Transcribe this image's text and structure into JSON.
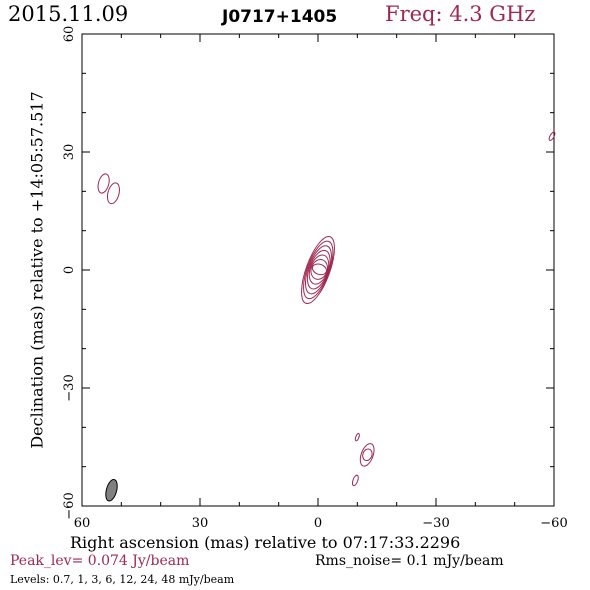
{
  "header": {
    "date": "2015.11.09",
    "source": "J0717+1405",
    "frequency": "Freq: 4.3 GHz"
  },
  "chart_data": {
    "type": "contour",
    "xlabel": "Right ascension (mas) relative to 07:17:33.2296",
    "ylabel": "Declination (mas) relative to +14:05:57.517",
    "xlim": [
      60,
      -60
    ],
    "ylim": [
      -60,
      60
    ],
    "xticks": [
      "60",
      "30",
      "0",
      "−30",
      "−60"
    ],
    "yticks": [
      "60",
      "30",
      "0",
      "−30",
      "−60"
    ],
    "peak_level": "Peak_lev=  0.074 Jy/beam",
    "rms_noise": "Rms_noise=   0.1 mJy/beam",
    "levels_text": "Levels: 0.7,    1,    3,    6,   12,   24,   48 mJy/beam",
    "contour_color": "#a0284f",
    "components": [
      {
        "name": "core",
        "x": 0,
        "y": 0,
        "semi_major": 9.0,
        "semi_minor": 3.0,
        "pa_deg": 20,
        "levels": 7
      },
      {
        "name": "ne-blob-1",
        "x": 54.5,
        "y": 22.0,
        "semi_major": 2.5,
        "semi_minor": 1.3,
        "pa_deg": 15,
        "levels": 1
      },
      {
        "name": "ne-blob-2",
        "x": 52.0,
        "y": 19.5,
        "semi_major": 2.7,
        "semi_minor": 1.4,
        "pa_deg": 15,
        "levels": 1
      },
      {
        "name": "edge-blob",
        "x": -59.5,
        "y": 34.0,
        "semi_major": 1.2,
        "semi_minor": 0.5,
        "pa_deg": 30,
        "levels": 1
      },
      {
        "name": "sw-blob-1",
        "x": -12.5,
        "y": -47.0,
        "semi_major": 3.0,
        "semi_minor": 1.5,
        "pa_deg": 20,
        "levels": 2
      },
      {
        "name": "sw-blob-2",
        "x": -10.0,
        "y": -42.5,
        "semi_major": 1.0,
        "semi_minor": 0.4,
        "pa_deg": 20,
        "levels": 1
      },
      {
        "name": "sw-blob-3",
        "x": -9.5,
        "y": -53.5,
        "semi_major": 1.4,
        "semi_minor": 0.6,
        "pa_deg": 20,
        "levels": 1
      }
    ],
    "beam": {
      "x": 52.5,
      "y": -56.0,
      "semi_major": 2.8,
      "semi_minor": 1.3,
      "pa_deg": 15,
      "fill": "#808080"
    }
  }
}
